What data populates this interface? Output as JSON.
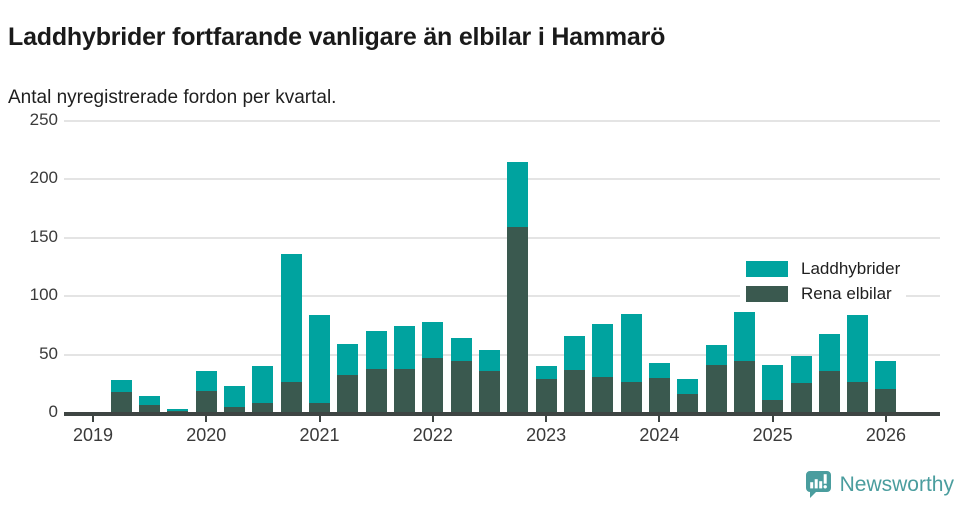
{
  "header": {
    "title": "Laddhybrider fortfarande vanligare än elbilar i Hammarö",
    "subtitle": "Antal nyregistrerade fordon per kvartal."
  },
  "legend": {
    "items": [
      {
        "label": "Laddhybrider",
        "color": "#00a39f"
      },
      {
        "label": "Rena elbilar",
        "color": "#3a594f"
      }
    ]
  },
  "footer": {
    "brand": "Newsworthy"
  },
  "colors": {
    "laddhybrider": "#00a39f",
    "rena_elbilar": "#3a594f",
    "axis_line": "#3e4543",
    "gridline": "#e4e4e4",
    "brand_teal": "#4a9d9e"
  },
  "chart_data": {
    "type": "bar",
    "stacked": true,
    "title": "Laddhybrider fortfarande vanligare än elbilar i Hammarö",
    "subtitle": "Antal nyregistrerade fordon per kvartal.",
    "xlabel": "",
    "ylabel": "",
    "ylim": [
      0,
      250
    ],
    "yticks": [
      0,
      50,
      100,
      150,
      200,
      250
    ],
    "x_tick_labels": [
      "2019",
      "2020",
      "2021",
      "2022",
      "2023",
      "2024",
      "2025",
      "2026"
    ],
    "grid": true,
    "legend_position": "top-right",
    "categories": [
      "2019 Q1",
      "2019 Q2",
      "2019 Q3",
      "2019 Q4",
      "2020 Q1",
      "2020 Q2",
      "2020 Q3",
      "2020 Q4",
      "2021 Q1",
      "2021 Q2",
      "2021 Q3",
      "2021 Q4",
      "2022 Q1",
      "2022 Q2",
      "2022 Q3",
      "2022 Q4",
      "2023 Q1",
      "2023 Q2",
      "2023 Q3",
      "2023 Q4",
      "2024 Q1",
      "2024 Q2",
      "2024 Q3",
      "2024 Q4",
      "2025 Q1",
      "2025 Q2",
      "2025 Q3",
      "2025 Q4",
      "2026 Q1"
    ],
    "series": [
      {
        "name": "Laddhybrider",
        "color": "#00a39f",
        "stack_order": "top",
        "values": [
          0,
          10,
          8,
          2,
          17,
          18,
          31,
          109,
          75,
          26,
          32,
          37,
          31,
          19,
          18,
          56,
          11,
          29,
          45,
          58,
          13,
          13,
          17,
          42,
          30,
          23,
          32,
          57,
          24
        ]
      },
      {
        "name": "Rena elbilar",
        "color": "#3a594f",
        "stack_order": "bottom",
        "values": [
          0,
          17,
          6,
          1,
          18,
          4,
          8,
          26,
          8,
          32,
          37,
          37,
          46,
          44,
          35,
          158,
          28,
          36,
          30,
          26,
          29,
          15,
          40,
          44,
          10,
          25,
          35,
          26,
          20
        ]
      }
    ]
  }
}
